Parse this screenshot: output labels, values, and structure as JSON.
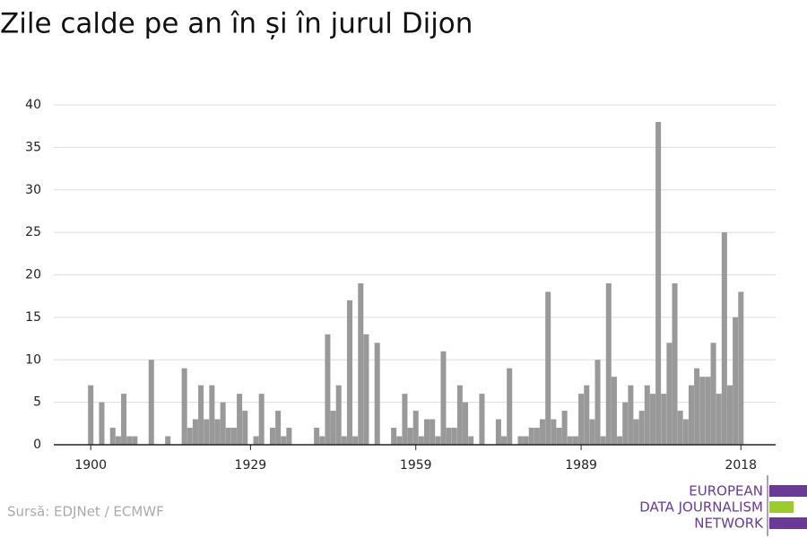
{
  "chart_data": {
    "type": "bar",
    "title": "Zile calde pe an în și în jurul Dijon",
    "source": "Sursă: EDJNet / ECMWF",
    "logo": [
      "EUROPEAN",
      "DATA JOURNALISM",
      "NETWORK"
    ],
    "color": "#999999",
    "x": [
      1900,
      1901,
      1902,
      1903,
      1904,
      1905,
      1906,
      1907,
      1908,
      1909,
      1910,
      1911,
      1912,
      1913,
      1914,
      1915,
      1916,
      1917,
      1918,
      1919,
      1920,
      1921,
      1922,
      1923,
      1924,
      1925,
      1926,
      1927,
      1928,
      1929,
      1930,
      1931,
      1932,
      1933,
      1934,
      1935,
      1936,
      1937,
      1938,
      1939,
      1940,
      1941,
      1942,
      1943,
      1944,
      1945,
      1946,
      1947,
      1948,
      1949,
      1950,
      1951,
      1952,
      1953,
      1954,
      1955,
      1956,
      1957,
      1958,
      1959,
      1960,
      1961,
      1962,
      1963,
      1964,
      1965,
      1966,
      1967,
      1968,
      1969,
      1970,
      1971,
      1972,
      1973,
      1974,
      1975,
      1976,
      1977,
      1978,
      1979,
      1980,
      1981,
      1982,
      1983,
      1984,
      1985,
      1986,
      1987,
      1988,
      1989,
      1990,
      1991,
      1992,
      1993,
      1994,
      1995,
      1996,
      1997,
      1998,
      1999,
      2000,
      2001,
      2002,
      2003,
      2004,
      2005,
      2006,
      2007,
      2008,
      2009,
      2010,
      2011,
      2012,
      2013,
      2014,
      2015,
      2016,
      2017,
      2018
    ],
    "values": [
      7,
      0,
      5,
      0,
      2,
      1,
      6,
      1,
      1,
      0,
      0,
      10,
      0,
      0,
      1,
      0,
      0,
      9,
      2,
      3,
      7,
      3,
      7,
      3,
      5,
      2,
      2,
      6,
      4,
      0,
      1,
      6,
      0,
      2,
      4,
      1,
      2,
      0,
      0,
      0,
      0,
      2,
      1,
      13,
      4,
      7,
      1,
      17,
      1,
      19,
      13,
      0,
      12,
      0,
      0,
      2,
      1,
      6,
      2,
      4,
      1,
      3,
      3,
      1,
      11,
      2,
      2,
      7,
      5,
      1,
      0,
      6,
      0,
      0,
      3,
      1,
      9,
      0,
      1,
      1,
      2,
      2,
      3,
      18,
      3,
      2,
      4,
      1,
      1,
      6,
      7,
      3,
      10,
      1,
      19,
      8,
      1,
      5,
      7,
      3,
      4,
      7,
      6,
      38,
      6,
      12,
      19,
      4,
      3,
      7,
      9,
      8,
      8,
      12,
      6,
      25,
      7,
      15,
      18
    ],
    "xlim": [
      1893.3,
      2024.3
    ],
    "xticks": [
      1900,
      1929,
      1959,
      1989,
      2018
    ],
    "ylim": [
      0,
      40
    ],
    "yticks": [
      0,
      5,
      10,
      15,
      20,
      25,
      30,
      35,
      40
    ],
    "grid": true
  }
}
